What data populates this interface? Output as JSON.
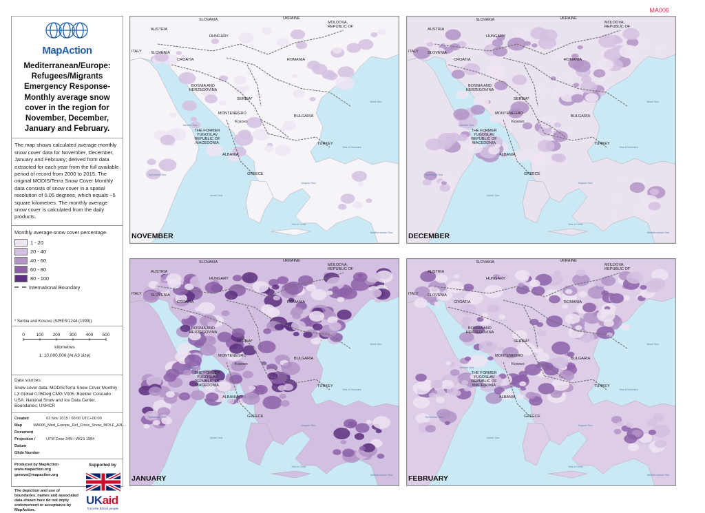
{
  "doc_code": "MA006",
  "sidebar": {
    "brand": "MapAction",
    "title": "Mediterranean/Europe: Refugees/Migrants Emergency Response- Monthly average snow cover in the region for November, December, January and February.",
    "description": "The map shows calculated average monthly snow cover data for November, December, January and February; derived from data extracted for each year from the full available period of record from 2000 to 2015. The original MODIS/Terra Snow Cover Monthly data consists of snow cover in a spatial resolution of 0.05 degrees, which equals ~5 square kilometres. The monthly average snow cover is calculated from the daily products.",
    "legend": {
      "title": "Monthly average snow cover percentage",
      "items": [
        {
          "label": "1 - 20",
          "color": "#ede4f2"
        },
        {
          "label": "20 - 40",
          "color": "#d3bfe1"
        },
        {
          "label": "40 - 60",
          "color": "#b293c6"
        },
        {
          "label": "60 - 80",
          "color": "#8d62a9"
        },
        {
          "label": "80 - 100",
          "color": "#5c2f7e"
        }
      ],
      "boundary_label": "International Boundary",
      "footnote": "* Serbia and Kosovo (S/RES/1244 (1999))"
    },
    "scale": {
      "ticks": [
        "0",
        "100",
        "200",
        "300",
        "400",
        "500"
      ],
      "unit": "kilometres",
      "ratio": "1: 10,000,000 (At A3 size)"
    },
    "sources": {
      "heading": "Data sources:",
      "text": "Snow cover data: MODIS/Terra Snow Cover Monthly L3 Global 0.05Deg CMG V005. Boulder Colorado USA: National Snow and Ice Data Center.",
      "boundaries": "Boundaries: UNHCR"
    },
    "meta": [
      {
        "k": "Created",
        "v": "02 Nov 2015 / 00:00   UTC+00:00"
      },
      {
        "k": "Map Document",
        "v": "MA006_Med_Europe_Ref_Crisis_Snow_MOLF_A3L..."
      },
      {
        "k": "Projection / Datum",
        "v": "UTM Zone 34N / WGS 1984"
      },
      {
        "k": "Glide Number",
        "v": ""
      }
    ],
    "produced_by": "Produced by MapAction www.mapaction.org geneva@mapaction.org",
    "supported_by": "Supported by",
    "disclaimer": "The depiction and use of boundaries, names and associated data shown here do not imply endorsement or acceptance by MapAction.",
    "ukaid_a": "UK",
    "ukaid_b": "aid",
    "ukaid_sub": "from the British people"
  },
  "panels": [
    {
      "month": "NOVEMBER",
      "level": 0
    },
    {
      "month": "DECEMBER",
      "level": 1
    },
    {
      "month": "JANUARY",
      "level": 3
    },
    {
      "month": "FEBRUARY",
      "level": 2
    }
  ],
  "map_labels": {
    "slovakia": "SLOVAKIA",
    "ukraine": "UKRAINE",
    "moldova": "MOLDOVA, REPUBLIC OF",
    "austria": "AUSTRIA",
    "hungary": "HUNGARY",
    "italy": "ITALY",
    "slovenia": "SLOVENIA",
    "croatia": "CROATIA",
    "romania": "ROMANIA",
    "bosnia": "BOSNIA AND HERZEGOVINA",
    "serbia": "SERBIA*",
    "montenegro": "MONTENEGRO",
    "kosovo": "Kosovo",
    "bulgaria": "BULGARIA",
    "macedonia": "THE FORMER YUGOSLAV REPUBLIC OF MACEDONIA",
    "albania": "ALBANIA",
    "turkey": "TURKEY",
    "greece": "GREECE",
    "black_sea": "Black Sea",
    "adriatic": "Adriatic Sea",
    "tyrrhenian": "Tyrrhenian Sea",
    "ionian": "Ionian Sea",
    "aegean": "Aegean Sea",
    "marmara": "Sea of Marmara",
    "crete": "Sea of Crete",
    "med": "Mediterranean Sea"
  }
}
